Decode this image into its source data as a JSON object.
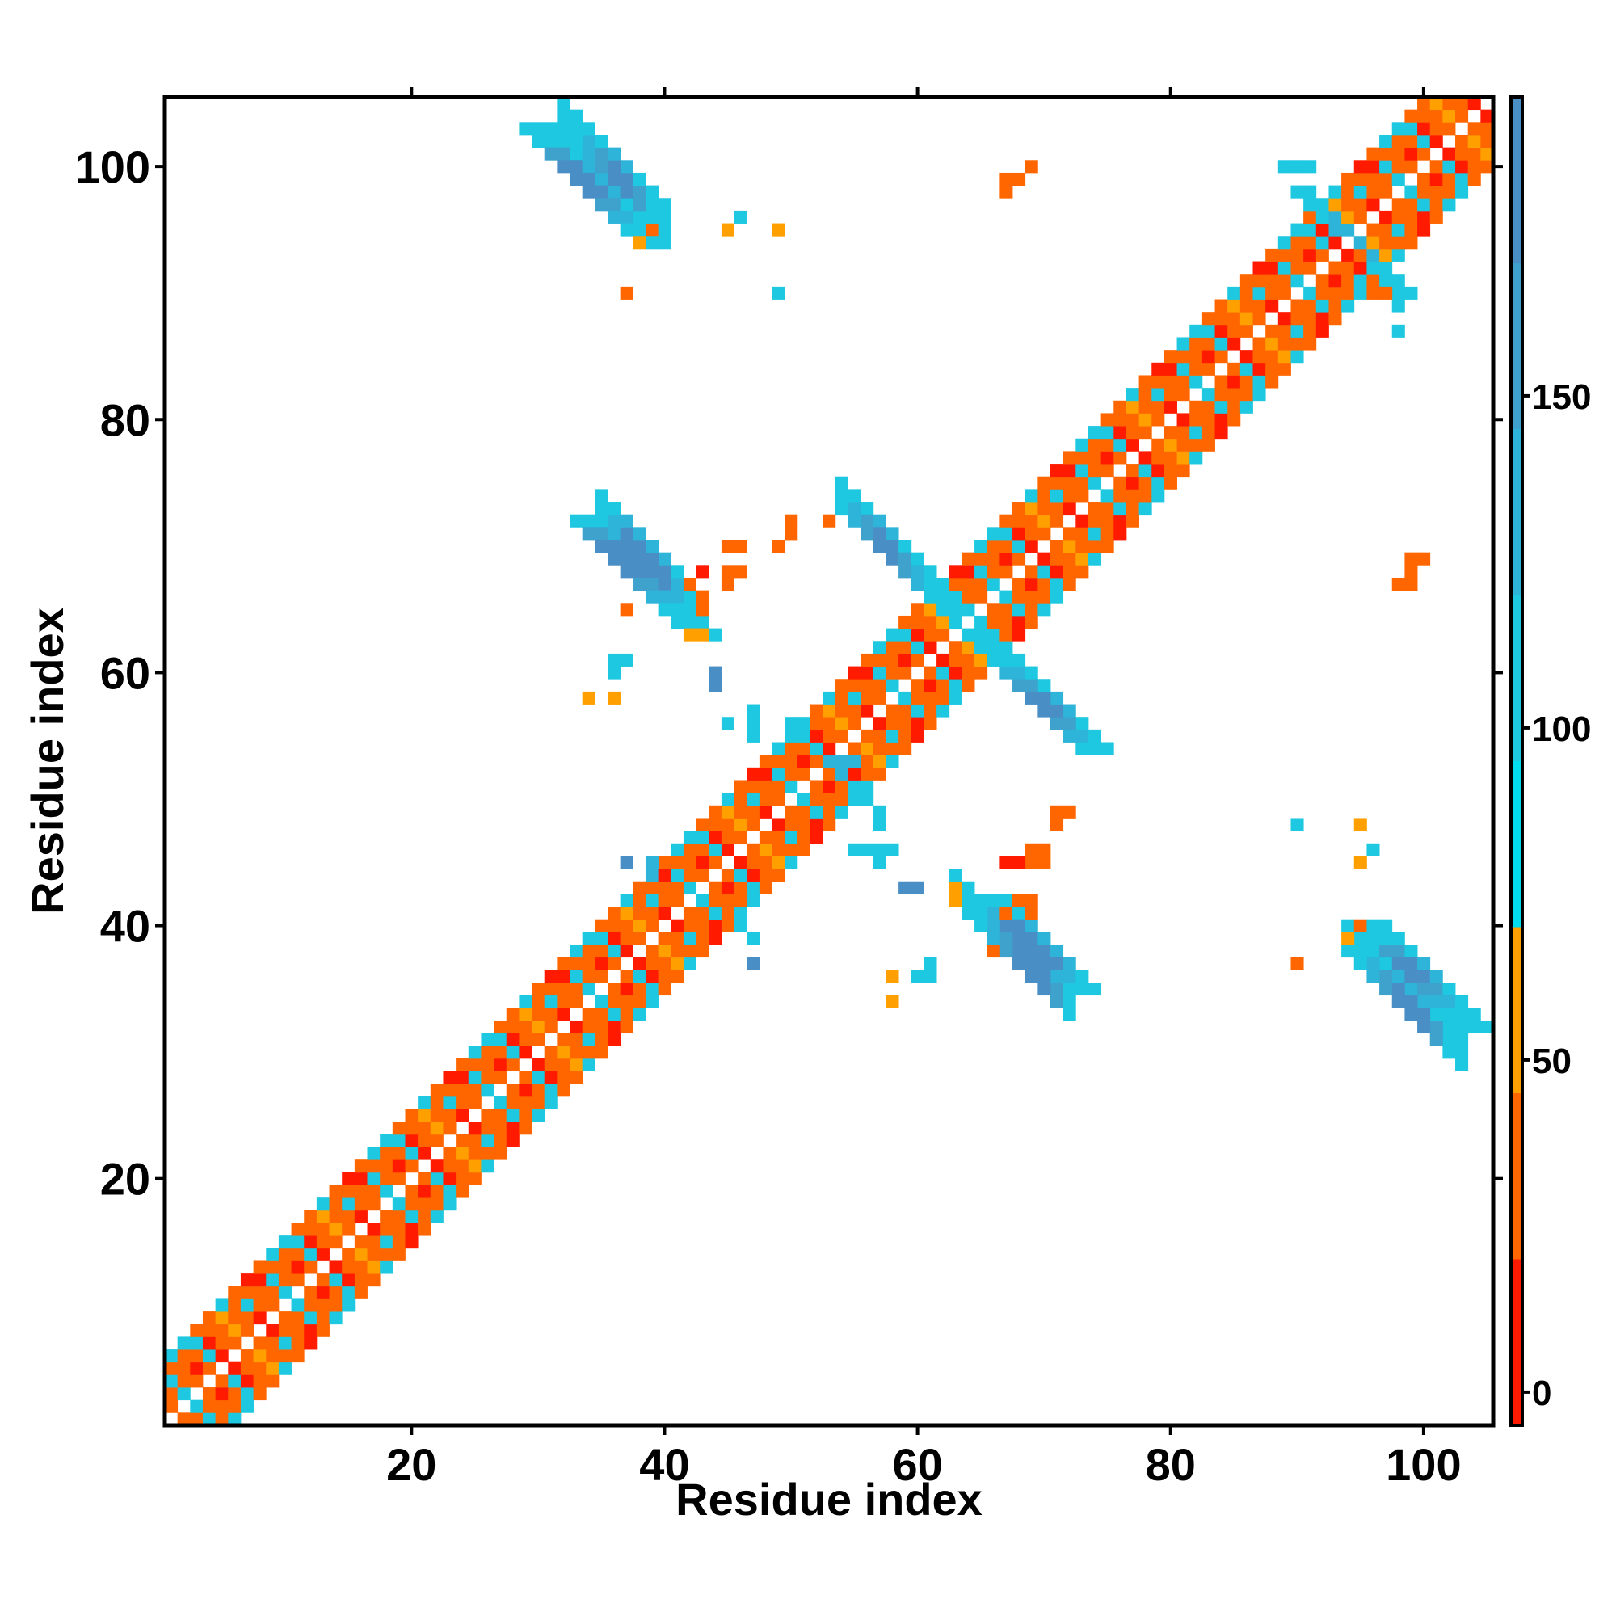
{
  "chart_data": {
    "type": "heatmap",
    "title": "",
    "xlabel": "Residue index",
    "ylabel": "Residue index",
    "xlim": [
      1,
      105
    ],
    "ylim": [
      1,
      105
    ],
    "x_ticks": [
      20,
      40,
      60,
      80,
      100
    ],
    "y_ticks": [
      20,
      40,
      60,
      80,
      100
    ],
    "grid": false,
    "symmetric": true,
    "colorbar": {
      "range": [
        -5,
        195
      ],
      "ticks": [
        0,
        50,
        100,
        150
      ],
      "bands": [
        {
          "from": -5,
          "to": 20,
          "color": "#ff1a00"
        },
        {
          "from": 20,
          "to": 45,
          "color": "#ff6600"
        },
        {
          "from": 45,
          "to": 70,
          "color": "#ffa000"
        },
        {
          "from": 70,
          "to": 95,
          "color": "#00ddee"
        },
        {
          "from": 95,
          "to": 120,
          "color": "#1ec8e0"
        },
        {
          "from": 120,
          "to": 145,
          "color": "#2eb4d8"
        },
        {
          "from": 145,
          "to": 170,
          "color": "#3ea2cc"
        },
        {
          "from": 170,
          "to": 195,
          "color": "#4a8ec6"
        }
      ]
    },
    "diagonal": {
      "i_range": [
        1,
        104
      ],
      "offsets": [
        1,
        2,
        3,
        4,
        5
      ],
      "pattern": [
        [
          10,
          40,
          40,
          10,
          40
        ],
        [
          40,
          40,
          105,
          40,
          110
        ],
        [
          105,
          40,
          40,
          40,
          105
        ],
        [
          40,
          10,
          40,
          105,
          40
        ],
        [
          40,
          105,
          10,
          40,
          40
        ],
        [
          10,
          40,
          40,
          60,
          105
        ],
        [
          40,
          60,
          40,
          40,
          40
        ],
        [
          40,
          40,
          105,
          40,
          10
        ]
      ]
    },
    "off_diagonal_patches": [
      {
        "name": "hairpin-29-38-vs-95-103",
        "i0": 29,
        "j0": 103,
        "di": 1,
        "dj": -1,
        "len": 10,
        "width": 3,
        "values": [
          95,
          110,
          150,
          180,
          180,
          170,
          150,
          120,
          100,
          95
        ]
      },
      {
        "name": "strand-33-42-vs-64-73",
        "i0": 33,
        "j0": 72,
        "di": 1,
        "dj": -1,
        "len": 10,
        "width": 3,
        "values": [
          100,
          160,
          180,
          175,
          170,
          160,
          130,
          110,
          100,
          60
        ]
      },
      {
        "name": "strand-54-66-vs-60-73",
        "i0": 54,
        "j0": 73,
        "di": 1,
        "dj": -1,
        "len": 11,
        "width": 3,
        "values": [
          100,
          140,
          160,
          175,
          170,
          150,
          130,
          110,
          100,
          95,
          95
        ]
      },
      {
        "name": "strand-66-73-vs-54-62",
        "i0": 66,
        "j0": 61,
        "di": 1,
        "dj": -1,
        "len": 8,
        "width": 3,
        "values": [
          100,
          130,
          160,
          170,
          175,
          160,
          120,
          100
        ]
      },
      {
        "name": "strand-65-72-vs-34-43",
        "i0": 65,
        "j0": 42,
        "di": 1,
        "dj": -1,
        "len": 8,
        "width": 3,
        "values": [
          100,
          130,
          170,
          180,
          180,
          170,
          140,
          100
        ]
      },
      {
        "name": "strand-95-103-vs-29-40",
        "i0": 95,
        "j0": 40,
        "di": 1,
        "dj": -1,
        "len": 9,
        "width": 3,
        "values": [
          95,
          110,
          150,
          175,
          180,
          165,
          140,
          110,
          100
        ]
      },
      {
        "name": "sheet-88-97-vs-89-99",
        "i0": 90,
        "j0": 98,
        "di": 1,
        "dj": -1,
        "len": 8,
        "width": 2,
        "values": [
          110,
          150,
          130,
          100,
          120,
          140,
          110,
          100
        ]
      }
    ],
    "scatter_cells": [
      [
        67,
        99,
        40
      ],
      [
        68,
        99,
        40
      ],
      [
        69,
        100,
        40
      ],
      [
        67,
        98,
        40
      ],
      [
        37,
        90,
        40
      ],
      [
        49,
        90,
        110
      ],
      [
        45,
        95,
        60
      ],
      [
        49,
        95,
        60
      ],
      [
        46,
        96,
        100
      ],
      [
        39,
        95,
        40
      ],
      [
        38,
        94,
        60
      ],
      [
        49,
        70,
        40
      ],
      [
        50,
        71,
        40
      ],
      [
        50,
        72,
        40
      ],
      [
        45,
        70,
        40
      ],
      [
        46,
        70,
        40
      ],
      [
        45,
        68,
        40
      ],
      [
        46,
        68,
        40
      ],
      [
        45,
        67,
        40
      ],
      [
        53,
        72,
        40
      ],
      [
        43,
        68,
        10
      ],
      [
        42,
        67,
        40
      ],
      [
        43,
        66,
        40
      ],
      [
        43,
        65,
        40
      ],
      [
        40,
        65,
        110
      ],
      [
        42,
        66,
        110
      ],
      [
        37,
        65,
        40
      ],
      [
        36,
        61,
        100
      ],
      [
        37,
        61,
        100
      ],
      [
        36,
        60,
        100
      ],
      [
        44,
        60,
        170
      ],
      [
        44,
        59,
        170
      ],
      [
        34,
        58,
        60
      ],
      [
        36,
        58,
        60
      ],
      [
        47,
        57,
        100
      ],
      [
        47,
        56,
        110
      ],
      [
        47,
        55,
        110
      ],
      [
        45,
        56,
        110
      ],
      [
        50,
        56,
        110
      ],
      [
        51,
        56,
        110
      ],
      [
        51,
        55,
        110
      ],
      [
        53,
        53,
        140
      ],
      [
        54,
        53,
        140
      ],
      [
        55,
        53,
        140
      ],
      [
        54,
        52,
        120
      ],
      [
        55,
        51,
        100
      ],
      [
        56,
        51,
        100
      ],
      [
        55,
        50,
        110
      ],
      [
        56,
        50,
        110
      ],
      [
        57,
        49,
        110
      ],
      [
        57,
        48,
        110
      ],
      [
        55,
        46,
        110
      ],
      [
        56,
        46,
        110
      ],
      [
        57,
        46,
        110
      ],
      [
        58,
        46,
        110
      ],
      [
        57,
        45,
        100
      ],
      [
        59,
        43,
        170
      ],
      [
        60,
        43,
        170
      ],
      [
        46,
        41,
        110
      ],
      [
        46,
        40,
        110
      ],
      [
        47,
        39,
        110
      ],
      [
        47,
        37,
        170
      ],
      [
        37,
        45,
        170
      ],
      [
        39,
        45,
        140
      ],
      [
        39,
        44,
        140
      ],
      [
        71,
        49,
        40
      ],
      [
        72,
        49,
        40
      ],
      [
        71,
        48,
        40
      ],
      [
        69,
        46,
        40
      ],
      [
        70,
        45,
        40
      ],
      [
        69,
        45,
        40
      ],
      [
        67,
        45,
        10
      ],
      [
        68,
        45,
        10
      ],
      [
        70,
        46,
        40
      ],
      [
        68,
        42,
        40
      ],
      [
        69,
        42,
        40
      ],
      [
        69,
        41,
        40
      ],
      [
        67,
        41,
        40
      ],
      [
        66,
        42,
        110
      ],
      [
        65,
        42,
        110
      ],
      [
        66,
        38,
        40
      ],
      [
        58,
        36,
        60
      ],
      [
        58,
        34,
        60
      ],
      [
        61,
        36,
        100
      ],
      [
        61,
        37,
        100
      ],
      [
        60,
        36,
        100
      ],
      [
        90,
        48,
        110
      ],
      [
        95,
        48,
        60
      ],
      [
        96,
        46,
        100
      ],
      [
        95,
        45,
        60
      ],
      [
        90,
        37,
        40
      ],
      [
        94,
        39,
        60
      ],
      [
        95,
        40,
        40
      ],
      [
        99,
        69,
        40
      ],
      [
        100,
        69,
        40
      ],
      [
        99,
        68,
        40
      ],
      [
        98,
        67,
        40
      ],
      [
        99,
        67,
        40
      ],
      [
        89,
        100,
        110
      ],
      [
        90,
        100,
        110
      ],
      [
        91,
        100,
        110
      ],
      [
        98,
        87,
        110
      ],
      [
        94,
        92,
        40
      ],
      [
        95,
        93,
        40
      ],
      [
        96,
        90,
        40
      ],
      [
        97,
        90,
        40
      ],
      [
        98,
        90,
        100
      ],
      [
        99,
        90,
        100
      ],
      [
        98,
        89,
        100
      ]
    ]
  }
}
